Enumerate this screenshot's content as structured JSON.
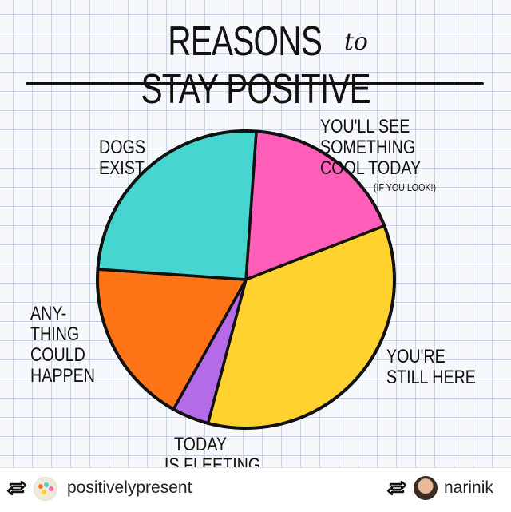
{
  "chart_data": {
    "type": "pie",
    "title_parts": [
      "REASONS",
      "to",
      "STAY POSITIVE"
    ],
    "slices": [
      {
        "label": "YOU'LL SEE SOMETHING COOL TODAY",
        "note": "(IF YOU LOOK!)",
        "value": 18,
        "color": "#ff5fb9"
      },
      {
        "label": "YOU'RE STILL HERE",
        "value": 35,
        "color": "#ffd230"
      },
      {
        "label": "TODAY IS FLEETING",
        "value": 4,
        "color": "#b56be8"
      },
      {
        "label": "ANY-THING COULD HAPPEN",
        "value": 18,
        "color": "#ff7417"
      },
      {
        "label": "DOGS EXIST",
        "value": 25,
        "color": "#46d6cf"
      }
    ],
    "labels": {
      "you_will_see": [
        "YOU'LL SEE",
        "SOMETHING",
        "COOL TODAY"
      ],
      "if_you_look": "(IF YOU LOOK!)",
      "still_here": [
        "YOU'RE",
        "STILL HERE"
      ],
      "fleeting": [
        "TODAY",
        "IS FLEETING"
      ],
      "anything": [
        "ANY-",
        "THING",
        "COULD",
        "HAPPEN"
      ],
      "dogs": [
        "DOGS",
        "EXIST"
      ]
    }
  },
  "footer": {
    "repost_icon": "repost-icon",
    "left_account": "positivelypresent",
    "right_account": "narinik"
  }
}
